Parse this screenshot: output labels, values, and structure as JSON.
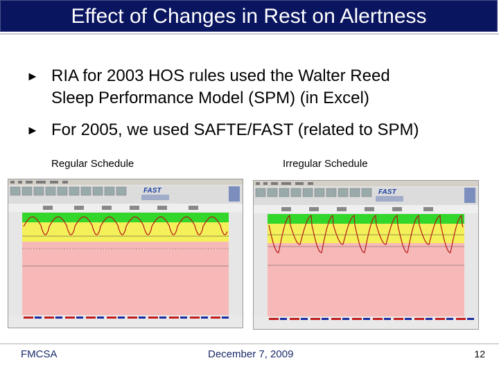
{
  "slide": {
    "title": "Effect of Changes in Rest on Alertness",
    "bullets": [
      {
        "marker": "►",
        "line1": "RIA for 2003 HOS rules used the Walter Reed",
        "line2": "Sleep Performance Model (SPM) (in Excel)"
      },
      {
        "marker": "►",
        "line1": "For 2005, we used SAFTE/FAST (related to SPM)"
      }
    ],
    "captions": {
      "left": "Regular Schedule",
      "right": "Irregular Schedule"
    },
    "footer": {
      "left": "FMCSA",
      "center": "December 7, 2009",
      "page": "12"
    }
  },
  "screenshots": [
    {
      "name": "regular",
      "app_logo": "FAST",
      "curve": "regular"
    },
    {
      "name": "irregular",
      "app_logo": "FAST",
      "curve": "irregular"
    }
  ],
  "colors": {
    "title_bg": "#0a1560",
    "band_green": "#33d62a",
    "band_yellow": "#f4f05a",
    "band_red": "#f7b8b8",
    "curve": "#b51414",
    "footer_text": "#1a2a6a"
  }
}
